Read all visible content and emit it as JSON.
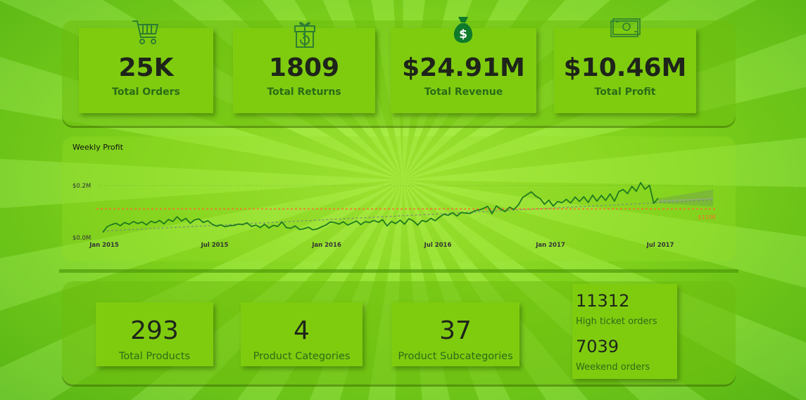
{
  "kpis": [
    {
      "value": "25K",
      "label": "Total Orders",
      "icon": "shopping-cart-icon"
    },
    {
      "value": "1809",
      "label": "Total Returns",
      "icon": "gift-return-icon"
    },
    {
      "value": "$24.91M",
      "label": "Total Revenue",
      "icon": "money-bag-icon"
    },
    {
      "value": "$10.46M",
      "label": "Total Profit",
      "icon": "cash-bills-icon"
    }
  ],
  "chart_data": {
    "type": "line",
    "title": "Weekly Profit",
    "y_ticks": [
      "$0.2M",
      "$0.0M"
    ],
    "x_ticks": [
      "Jan 2015",
      "Jul 2015",
      "Jan 2016",
      "Jul 2016",
      "Jan 2017",
      "Jul 2017"
    ],
    "reference_line": {
      "value": 110000,
      "label": "$110K",
      "color": "#ff6a2a"
    },
    "colors": {
      "line": "#1f7a1f",
      "trend": "#7a8a7a",
      "forecast_band": "#6e8f5e"
    },
    "series": [
      {
        "values": [
          20000,
          42000,
          50000,
          55000,
          46000,
          58000,
          51000,
          62000,
          54000,
          60000,
          49000,
          63000,
          57000,
          66000,
          53000,
          70000,
          62000,
          80000,
          64000,
          74000,
          55000,
          68000,
          72000,
          58000,
          65000,
          52000,
          44000,
          49000,
          42000,
          46000,
          47000,
          52000,
          50000,
          57000,
          43000,
          48000,
          39000,
          51000,
          37000,
          47000,
          43000,
          60000,
          38000,
          36000,
          45000,
          31000,
          34000,
          40000,
          30000,
          33000,
          41000,
          48000,
          60000,
          58000,
          52000,
          61000,
          48000,
          56000,
          64000,
          50000,
          61000,
          58000,
          66000,
          59000,
          69000,
          45000,
          62000,
          54000,
          67000,
          52000,
          73000,
          64000,
          48000,
          66000,
          61000,
          74000,
          65000,
          79000,
          90000,
          86000,
          96000,
          83000,
          97000,
          94000,
          93000,
          103000,
          106000,
          112000,
          120000,
          92000,
          122000,
          110000,
          100000,
          117000,
          108000,
          125000,
          154000,
          165000,
          176000,
          160000,
          150000,
          128000,
          144000,
          121000,
          139000,
          134000,
          147000,
          133000,
          156000,
          139000,
          157000,
          135000,
          163000,
          140000,
          162000,
          143000,
          168000,
          140000,
          177000,
          185000,
          169000,
          197000,
          178000,
          211000,
          186000,
          201000,
          132000,
          152000
        ]
      }
    ]
  },
  "bottom": [
    {
      "value": "293",
      "label": "Total Products"
    },
    {
      "value": "4",
      "label": "Product Categories"
    },
    {
      "value": "37",
      "label": "Product Subcategories"
    }
  ],
  "ticket": {
    "high_value": "11312",
    "high_label": "High ticket orders",
    "weekend_value": "7039",
    "weekend_label": "Weekend orders"
  }
}
